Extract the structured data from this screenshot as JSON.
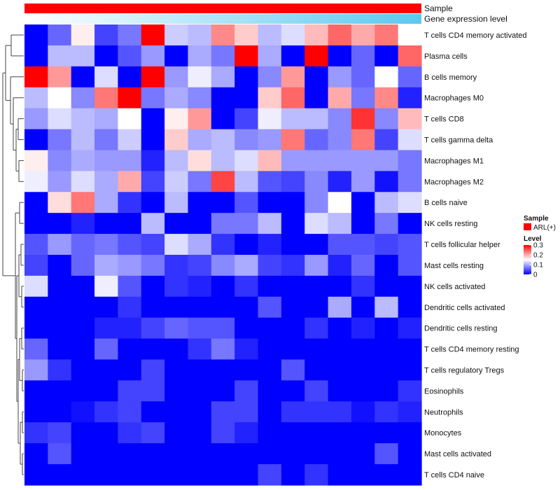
{
  "chart_data": {
    "type": "heatmap",
    "title": "",
    "annotations": [
      {
        "name": "Sample",
        "color": "#ff0000"
      },
      {
        "name": "Gene expression level",
        "gradient": [
          "#ffffff",
          "#5bc8ef"
        ]
      }
    ],
    "rows": [
      "T cells CD4 memory activated",
      "Plasma cells",
      "B cells memory",
      "Macrophages M0",
      "T cells CD8",
      "T cells gamma delta",
      "Macrophages M1",
      "Macrophages M2",
      "B cells naive",
      "NK cells resting",
      "T cells follicular helper",
      "Mast cells resting",
      "NK cells activated",
      "Dendritic cells activated",
      "Dendritic cells resting",
      "T cells CD4 memory resting",
      "T cells regulatory  Tregs",
      "Eosinophils",
      "Neutrophils",
      "Monocytes",
      "Mast cells activated",
      "T cells CD4 naive"
    ],
    "n_columns": 17,
    "values": [
      [
        0.0,
        0.06,
        0.16,
        0.04,
        0.07,
        0.3,
        0.12,
        0.11,
        0.22,
        0.18,
        0.11,
        0.13,
        0.19,
        0.24,
        0.2,
        0.23,
        0.15
      ],
      [
        0.0,
        0.11,
        0.11,
        0.0,
        0.05,
        0.09,
        0.0,
        0.1,
        0.07,
        0.3,
        0.1,
        0.0,
        0.3,
        0.0,
        0.06,
        0.0,
        0.24
      ],
      [
        0.3,
        0.21,
        0.0,
        0.13,
        0.0,
        0.3,
        0.09,
        0.14,
        0.1,
        0.0,
        0.08,
        0.21,
        0.0,
        0.09,
        0.06,
        0.15,
        0.06
      ],
      [
        0.11,
        0.15,
        0.08,
        0.23,
        0.3,
        0.07,
        0.1,
        0.08,
        0.0,
        0.0,
        0.18,
        0.24,
        0.0,
        0.2,
        0.07,
        0.22,
        0.02
      ],
      [
        0.09,
        0.13,
        0.11,
        0.1,
        0.15,
        0.0,
        0.16,
        0.21,
        0.0,
        0.04,
        0.14,
        0.11,
        0.11,
        0.08,
        0.27,
        0.08,
        0.19
      ],
      [
        0.0,
        0.07,
        0.11,
        0.07,
        0.12,
        0.0,
        0.18,
        0.1,
        0.11,
        0.08,
        0.09,
        0.23,
        0.06,
        0.08,
        0.23,
        0.04,
        0.13
      ],
      [
        0.16,
        0.08,
        0.1,
        0.09,
        0.09,
        0.02,
        0.11,
        0.17,
        0.11,
        0.13,
        0.19,
        0.09,
        0.09,
        0.09,
        0.09,
        0.09,
        0.07
      ],
      [
        0.14,
        0.09,
        0.13,
        0.1,
        0.2,
        0.04,
        0.12,
        0.07,
        0.26,
        0.11,
        0.05,
        0.04,
        0.08,
        0.02,
        0.09,
        0.01,
        0.07
      ],
      [
        0.0,
        0.17,
        0.23,
        0.1,
        0.03,
        0.0,
        0.11,
        0.0,
        0.0,
        0.05,
        0.0,
        0.0,
        0.08,
        0.15,
        0.0,
        0.11,
        0.13
      ],
      [
        0.0,
        0.0,
        0.02,
        0.0,
        0.0,
        0.11,
        0.0,
        0.0,
        0.07,
        0.07,
        0.11,
        0.0,
        0.13,
        0.11,
        0.0,
        0.07,
        0.0
      ],
      [
        0.05,
        0.09,
        0.06,
        0.07,
        0.05,
        0.04,
        0.13,
        0.1,
        0.03,
        0.0,
        0.02,
        0.0,
        0.0,
        0.05,
        0.05,
        0.04,
        0.05
      ],
      [
        0.04,
        0.0,
        0.06,
        0.1,
        0.09,
        0.07,
        0.03,
        0.04,
        0.08,
        0.1,
        0.04,
        0.03,
        0.09,
        0.02,
        0.06,
        0.0,
        0.05
      ],
      [
        0.13,
        0.0,
        0.0,
        0.14,
        0.05,
        0.0,
        0.03,
        0.02,
        0.0,
        0.03,
        0.0,
        0.0,
        0.0,
        0.0,
        0.03,
        0.0,
        0.0
      ],
      [
        0.0,
        0.0,
        0.0,
        0.0,
        0.03,
        0.0,
        0.0,
        0.0,
        0.0,
        0.0,
        0.05,
        0.0,
        0.0,
        0.1,
        0.0,
        0.11,
        0.0
      ],
      [
        0.0,
        0.0,
        0.0,
        0.02,
        0.02,
        0.04,
        0.06,
        0.05,
        0.05,
        0.0,
        0.0,
        0.0,
        0.03,
        0.0,
        0.02,
        0.0,
        0.02
      ],
      [
        0.06,
        0.0,
        0.0,
        0.06,
        0.0,
        0.0,
        0.0,
        0.03,
        0.07,
        0.02,
        0.0,
        0.0,
        0.0,
        0.0,
        0.0,
        0.0,
        0.0
      ],
      [
        0.09,
        0.03,
        0.0,
        0.0,
        0.0,
        0.04,
        0.0,
        0.0,
        0.0,
        0.0,
        0.0,
        0.05,
        0.0,
        0.0,
        0.0,
        0.0,
        0.0
      ],
      [
        0.0,
        0.0,
        0.0,
        0.0,
        0.04,
        0.04,
        0.0,
        0.0,
        0.0,
        0.04,
        0.0,
        0.0,
        0.04,
        0.0,
        0.0,
        0.0,
        0.03
      ],
      [
        0.0,
        0.0,
        0.01,
        0.03,
        0.04,
        0.0,
        0.0,
        0.0,
        0.04,
        0.04,
        0.0,
        0.03,
        0.03,
        0.03,
        0.01,
        0.03,
        0.02
      ],
      [
        0.03,
        0.04,
        0.0,
        0.0,
        0.03,
        0.04,
        0.0,
        0.0,
        0.04,
        0.02,
        0.0,
        0.0,
        0.0,
        0.0,
        0.0,
        0.0,
        0.0
      ],
      [
        0.0,
        0.05,
        0.0,
        0.0,
        0.0,
        0.0,
        0.0,
        0.0,
        0.0,
        0.0,
        0.0,
        0.0,
        0.0,
        0.0,
        0.0,
        0.05,
        0.0
      ],
      [
        0.0,
        0.0,
        0.0,
        0.0,
        0.0,
        0.0,
        0.0,
        0.0,
        0.0,
        0.0,
        0.04,
        0.0,
        0.03,
        0.0,
        0.0,
        0.0,
        0.0
      ]
    ],
    "color_scale": {
      "min": 0,
      "max": 0.3,
      "low": "#0000ff",
      "mid": "#ffffff",
      "high": "#ff0000",
      "mid_value": 0.15
    },
    "legend": {
      "position": "right",
      "sample_title": "Sample",
      "sample_entry": "ARL(+)",
      "level_title": "Level",
      "level_ticks": [
        "0.3",
        "0.2",
        "0.1",
        "0"
      ],
      "level_tick_values": [
        0.3,
        0.2,
        0.1,
        0
      ]
    }
  }
}
